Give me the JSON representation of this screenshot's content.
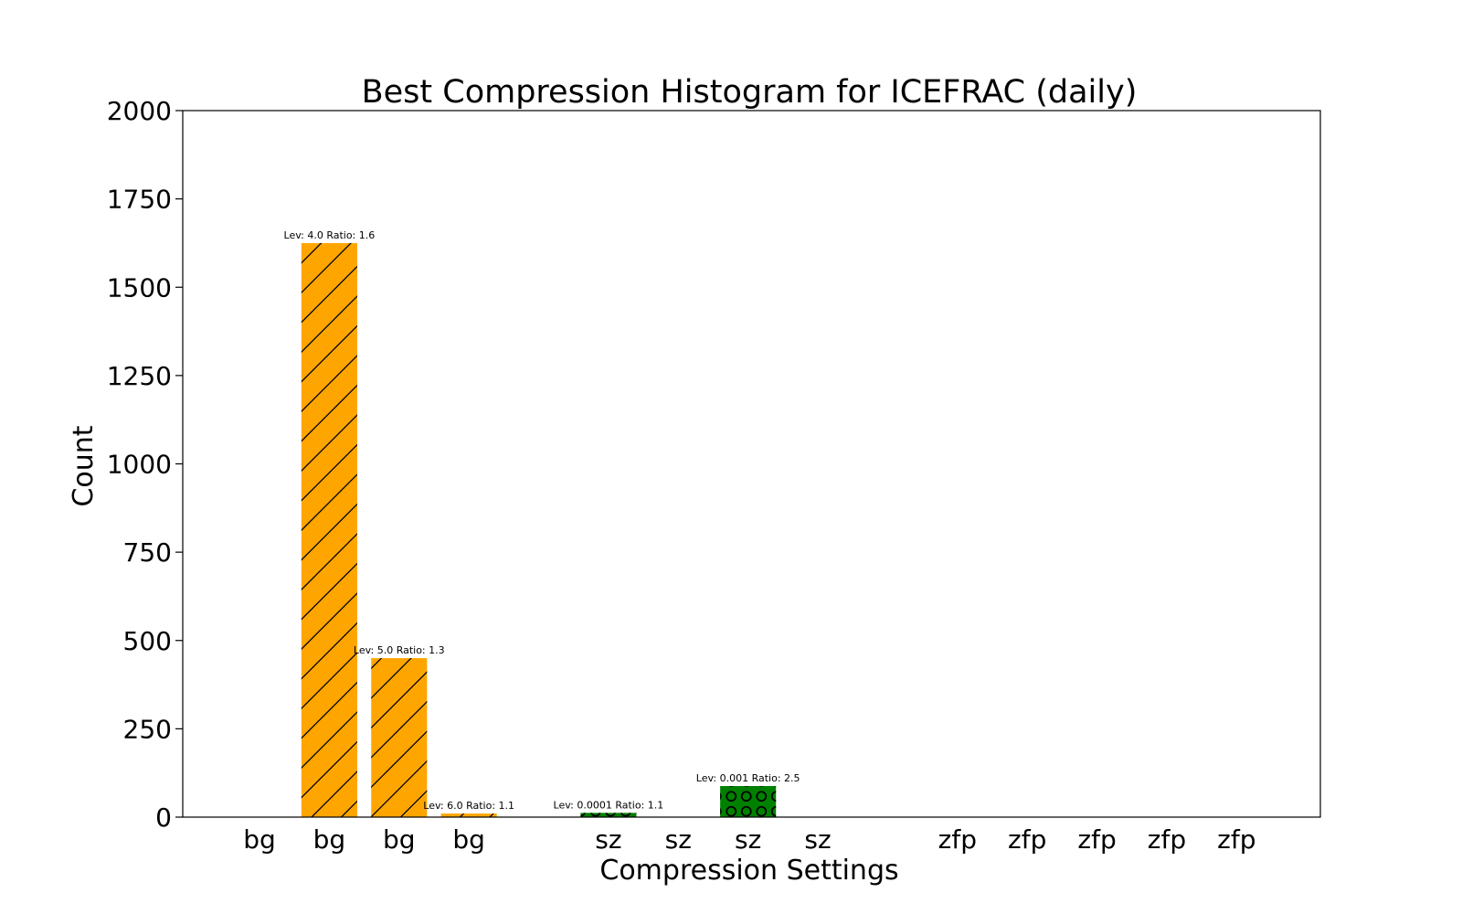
{
  "chart_data": {
    "type": "bar",
    "title": "Best Compression Histogram for ICEFRAC (daily)",
    "xlabel": "Compression Settings",
    "ylabel": "Count",
    "ylim": [
      0,
      2000
    ],
    "yticks": [
      0,
      250,
      500,
      750,
      1000,
      1250,
      1500,
      1750,
      2000
    ],
    "categories": [
      "bg",
      "bg",
      "bg",
      "bg",
      "sz",
      "sz",
      "sz",
      "sz",
      "zfp",
      "zfp",
      "zfp",
      "zfp",
      "zfp"
    ],
    "x": [
      0,
      1,
      2,
      3,
      5,
      6,
      7,
      8,
      10,
      11,
      12,
      13,
      14
    ],
    "values": [
      0,
      1625,
      450,
      10,
      12,
      0,
      88,
      0,
      0,
      0,
      0,
      0,
      0
    ],
    "bar_labels": [
      "",
      "Lev: 4.0 Ratio: 1.6",
      "Lev: 5.0 Ratio: 1.3",
      "Lev: 6.0 Ratio: 1.1",
      "Lev: 0.0001 Ratio: 1.1",
      "",
      "Lev: 0.001 Ratio: 2.5",
      "",
      "",
      "",
      "",
      "",
      ""
    ],
    "bar_colors": [
      "#FFA500",
      "#FFA500",
      "#FFA500",
      "#FFA500",
      "#008000",
      "#008000",
      "#008000",
      "#008000",
      "#808080",
      "#808080",
      "#808080",
      "#808080",
      "#808080"
    ],
    "bar_hatches": [
      "diagonal",
      "diagonal",
      "diagonal",
      "diagonal",
      "circles",
      "circles",
      "circles",
      "circles",
      "none",
      "none",
      "none",
      "none",
      "none"
    ],
    "grid": false,
    "legend": false
  }
}
